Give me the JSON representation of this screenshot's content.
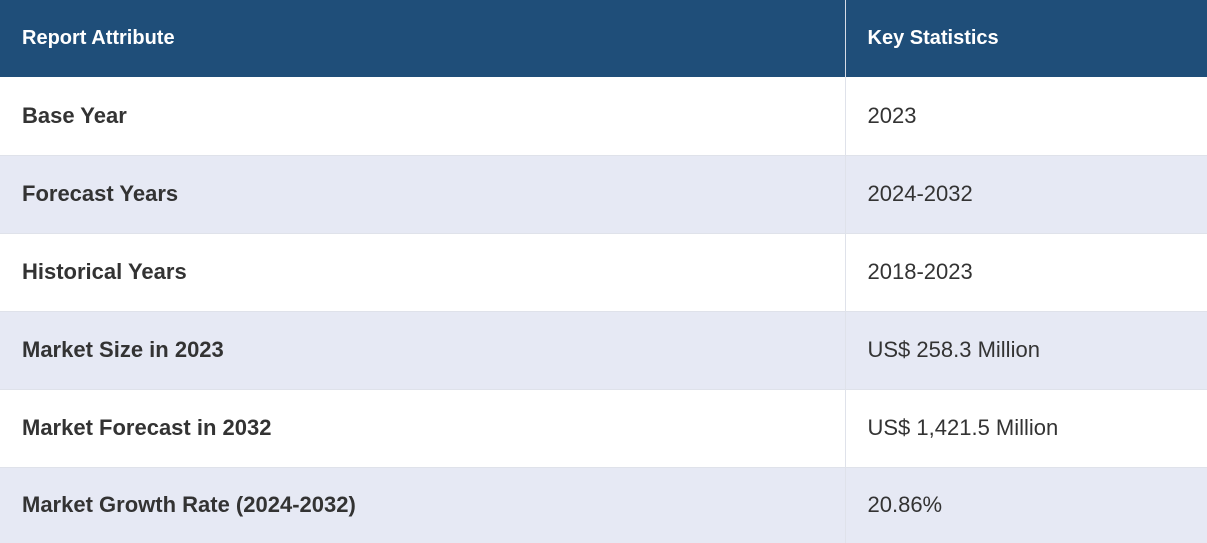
{
  "table": {
    "header": {
      "attribute": "Report Attribute",
      "statistic": "Key Statistics"
    },
    "rows": [
      {
        "attribute": "Base Year",
        "value": "2023"
      },
      {
        "attribute": "Forecast Years",
        "value": "2024-2032"
      },
      {
        "attribute": "Historical Years",
        "value": "2018-2023"
      },
      {
        "attribute": "Market Size in 2023",
        "value": "US$ 258.3 Million"
      },
      {
        "attribute": "Market Forecast in 2032",
        "value": "US$ 1,421.5 Million"
      },
      {
        "attribute": "Market Growth Rate (2024-2032)",
        "value": "20.86%"
      }
    ]
  },
  "colors": {
    "header_bg": "#1f4e79",
    "header_text": "#ffffff",
    "row_alt_bg": "#e6e9f4",
    "body_text": "#333333"
  }
}
